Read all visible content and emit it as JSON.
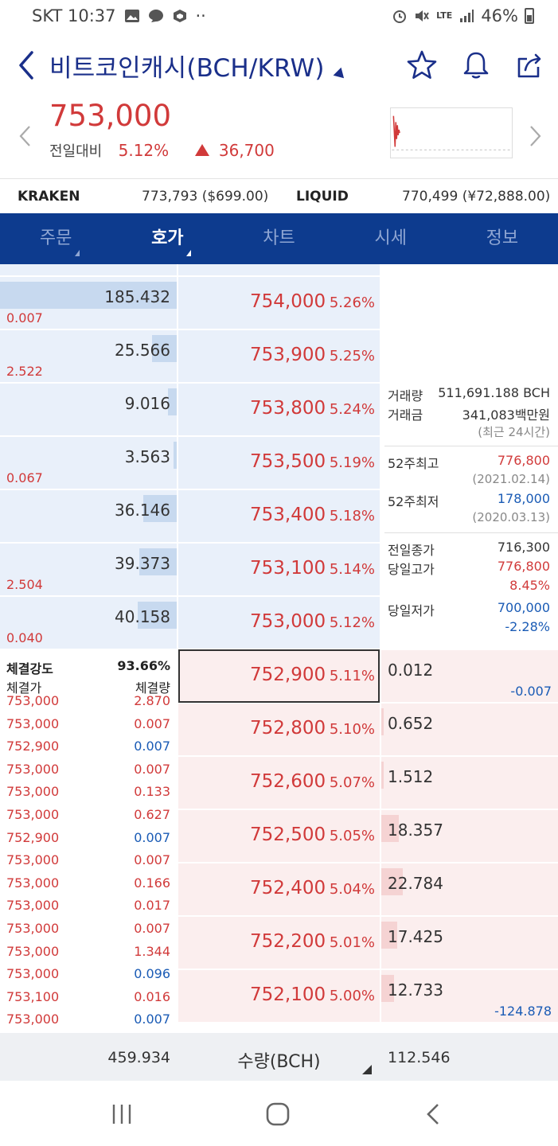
{
  "status": {
    "carrier_time": "SKT 10:37",
    "dots": "··",
    "net": "LTE",
    "battery": "46%"
  },
  "header": {
    "title": "비트코인캐시(BCH/KRW)"
  },
  "price": {
    "current": "753,000",
    "change_label": "전일대비",
    "change_pct": "5.12%",
    "change_amt": "36,700"
  },
  "exchanges": [
    {
      "name": "KRAKEN",
      "value": "773,793 ($699.00)"
    },
    {
      "name": "LIQUID",
      "value": "770,499 (¥72,888.00)"
    }
  ],
  "tabs": [
    "주문",
    "호가",
    "차트",
    "시세",
    "정보"
  ],
  "asks": [
    {
      "qty": "185.432",
      "chg": "0.007",
      "price": "754,000",
      "pct": "5.26%",
      "bar": 100
    },
    {
      "qty": "25.566",
      "chg": "2.522",
      "price": "753,900",
      "pct": "5.25%",
      "bar": 14
    },
    {
      "qty": "9.016",
      "chg": "",
      "price": "753,800",
      "pct": "5.24%",
      "bar": 5
    },
    {
      "qty": "3.563",
      "chg": "0.067",
      "price": "753,500",
      "pct": "5.19%",
      "bar": 2
    },
    {
      "qty": "36.146",
      "chg": "",
      "price": "753,400",
      "pct": "5.18%",
      "bar": 19
    },
    {
      "qty": "39.373",
      "chg": "2.504",
      "price": "753,100",
      "pct": "5.14%",
      "bar": 21
    },
    {
      "qty": "40.158",
      "chg": "0.040",
      "price": "753,000",
      "pct": "5.12%",
      "bar": 22
    }
  ],
  "bids": [
    {
      "price": "752,900",
      "pct": "5.11%",
      "qty": "0.012",
      "chg": "-0.007",
      "bar": 0
    },
    {
      "price": "752,800",
      "pct": "5.10%",
      "qty": "0.652",
      "chg": "",
      "bar": 0.5
    },
    {
      "price": "752,600",
      "pct": "5.07%",
      "qty": "1.512",
      "chg": "",
      "bar": 1
    },
    {
      "price": "752,500",
      "pct": "5.05%",
      "qty": "18.357",
      "chg": "",
      "bar": 10
    },
    {
      "price": "752,400",
      "pct": "5.04%",
      "qty": "22.784",
      "chg": "",
      "bar": 12
    },
    {
      "price": "752,200",
      "pct": "5.01%",
      "qty": "17.425",
      "chg": "",
      "bar": 9
    },
    {
      "price": "752,100",
      "pct": "5.00%",
      "qty": "12.733",
      "chg": "-124.878",
      "bar": 7
    }
  ],
  "info": {
    "volume_label": "거래량",
    "volume": "511,691.188 BCH",
    "amount_label": "거래금",
    "amount": "341,083백만원",
    "period": "(최근 24시간)",
    "high52_label": "52주최고",
    "high52": "776,800",
    "high52_date": "(2021.02.14)",
    "low52_label": "52주최저",
    "low52": "178,000",
    "low52_date": "(2020.03.13)",
    "prev_close_label": "전일종가",
    "prev_close": "716,300",
    "day_high_label": "당일고가",
    "day_high": "776,800",
    "day_high_pct": "8.45%",
    "day_low_label": "당일저가",
    "day_low": "700,000",
    "day_low_pct": "-2.28%"
  },
  "trades": {
    "strength_label": "체결강도",
    "strength": "93.66%",
    "price_label": "체결가",
    "qty_label": "체결량",
    "rows": [
      {
        "p": "753,000",
        "q": "2.870",
        "c": "red"
      },
      {
        "p": "753,000",
        "q": "0.007",
        "c": "red"
      },
      {
        "p": "752,900",
        "q": "0.007",
        "c": "blue"
      },
      {
        "p": "753,000",
        "q": "0.007",
        "c": "red"
      },
      {
        "p": "753,000",
        "q": "0.133",
        "c": "red"
      },
      {
        "p": "753,000",
        "q": "0.627",
        "c": "red"
      },
      {
        "p": "752,900",
        "q": "0.007",
        "c": "blue"
      },
      {
        "p": "753,000",
        "q": "0.007",
        "c": "red"
      },
      {
        "p": "753,000",
        "q": "0.166",
        "c": "red"
      },
      {
        "p": "753,000",
        "q": "0.017",
        "c": "red"
      },
      {
        "p": "753,000",
        "q": "0.007",
        "c": "red"
      },
      {
        "p": "753,000",
        "q": "1.344",
        "c": "red"
      },
      {
        "p": "753,000",
        "q": "0.096",
        "c": "blue"
      },
      {
        "p": "753,100",
        "q": "0.016",
        "c": "red"
      },
      {
        "p": "753,000",
        "q": "0.007",
        "c": "blue"
      }
    ]
  },
  "footer": {
    "ask_total": "459.934",
    "unit_label": "수량(BCH)",
    "bid_total": "112.546"
  },
  "colors": {
    "up": "#d13a3a",
    "down": "#1a5bb5",
    "tab_bg": "#0d3b8e"
  }
}
